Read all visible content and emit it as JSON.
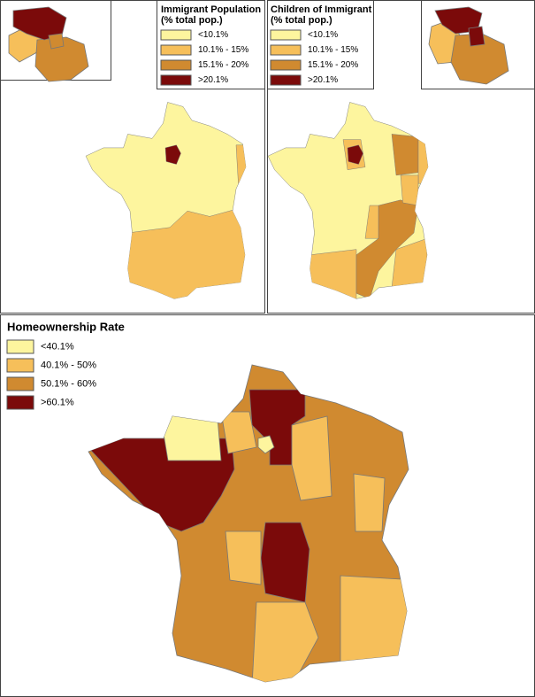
{
  "panels": [
    {
      "legend": {
        "title": "Immigrant Population",
        "subtitle": "(% total pop.)",
        "items": [
          "<10.1%",
          "10.1% - 15%",
          "15.1% - 20%",
          ">20.1%"
        ],
        "colors": [
          "#fdf59e",
          "#f6bf5a",
          "#d08a30",
          "#7b0a0a"
        ]
      }
    },
    {
      "legend": {
        "title": "Children of Immigrant",
        "subtitle": "(% total pop.)",
        "items": [
          "<10.1%",
          "10.1% - 15%",
          "15.1% - 20%",
          ">20.1%"
        ],
        "colors": [
          "#fdf59e",
          "#f6bf5a",
          "#d08a30",
          "#7b0a0a"
        ]
      }
    },
    {
      "legend": {
        "title": "Homeownership Rate",
        "items": [
          "<40.1%",
          "40.1% - 50%",
          "50.1% - 60%",
          ">60.1%"
        ],
        "colors": [
          "#fdf59e",
          "#f6bf5a",
          "#d08a30",
          "#7b0a0a"
        ]
      }
    }
  ]
}
